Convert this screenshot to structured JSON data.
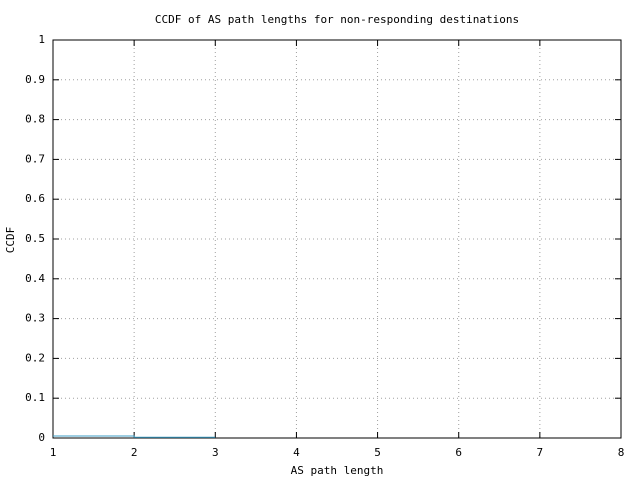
{
  "chart_data": {
    "type": "line",
    "title": "CCDF of AS path lengths for non-responding destinations",
    "x_label": "AS path length",
    "y_label": "CCDF",
    "x": [
      1,
      2,
      2,
      3
    ],
    "series": [
      {
        "color": "#3d9ec4",
        "values": [
          0.005,
          0.005,
          0.002,
          0.002
        ]
      }
    ],
    "xlim": [
      1,
      8
    ],
    "ylim": [
      0,
      1
    ],
    "xticks": [
      1,
      2,
      3,
      4,
      5,
      6,
      7,
      8
    ],
    "yticks": [
      0,
      0.1,
      0.2,
      0.3,
      0.4,
      0.5,
      0.6,
      0.7,
      0.8,
      0.9,
      1
    ],
    "grid": true
  }
}
